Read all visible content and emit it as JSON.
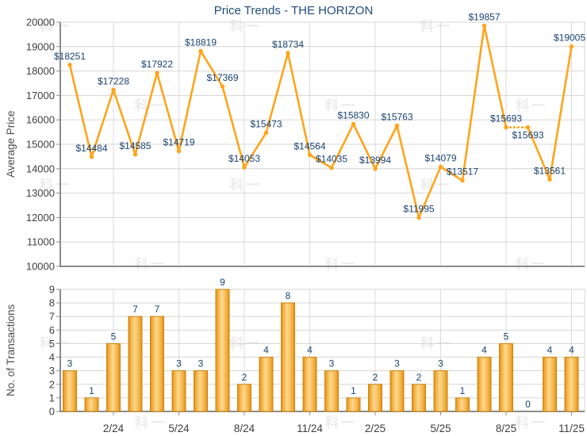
{
  "watermark_text": "科一",
  "colors": {
    "line": "#FFA41A",
    "label": "#1A436F",
    "title": "#1F4E79",
    "tick_label": "#404040",
    "axis_title": "#4D4D4D",
    "axis_line": "#8C8C8C",
    "grid_line": "#D6D6D6",
    "grid_line_v": "#DCDCDC",
    "bar_edge": "#E28E12",
    "bar_mid": "#F4B144",
    "bar_highlight": "#FDD98F",
    "bar_border": "#CE8410",
    "watermark": "#ECECEC"
  },
  "x_axis": {
    "labels": [
      "2/24",
      "5/24",
      "8/24",
      "11/24",
      "2/25",
      "5/25",
      "8/25",
      "11/25"
    ],
    "label_point_indices": [
      3,
      6,
      9,
      12,
      15,
      18,
      21,
      24
    ]
  },
  "chart_data": [
    {
      "type": "line",
      "title": "Price Trends - THE HORIZON",
      "ylabel": "Average Price",
      "ylim": [
        10000,
        20000
      ],
      "yticks": [
        10000,
        11000,
        12000,
        13000,
        14000,
        15000,
        16000,
        17000,
        18000,
        19000,
        20000
      ],
      "grid": true,
      "values": [
        18251,
        14484,
        17228,
        14585,
        17922,
        14719,
        18819,
        17369,
        14053,
        15473,
        18734,
        14564,
        14035,
        15830,
        13994,
        15763,
        11995,
        14079,
        13517,
        19857,
        15693,
        15693,
        13561,
        19005
      ],
      "point_labels": [
        "$18251",
        "$14484",
        "$17228",
        "$14585",
        "$17922",
        "$14719",
        "$18819",
        "$17369",
        "$14053",
        "$15473",
        "$18734",
        "$14564",
        "$14035",
        "$15830",
        "$13994",
        "$15763",
        "$11995",
        "$14079",
        "$13517",
        "$19857",
        "$15693",
        "$15693",
        "$13561",
        "$19005"
      ],
      "dotted_segments": [
        [
          21,
          22
        ]
      ],
      "labels_below": [
        22
      ]
    },
    {
      "type": "bar",
      "ylabel": "No. of Transactions",
      "ylim": [
        0,
        9
      ],
      "yticks": [
        0,
        1,
        2,
        3,
        4,
        5,
        6,
        7,
        8,
        9
      ],
      "grid": true,
      "values": [
        3,
        1,
        5,
        7,
        7,
        3,
        3,
        9,
        2,
        4,
        8,
        4,
        3,
        1,
        2,
        3,
        2,
        3,
        1,
        4,
        5,
        0,
        4,
        4
      ]
    }
  ]
}
